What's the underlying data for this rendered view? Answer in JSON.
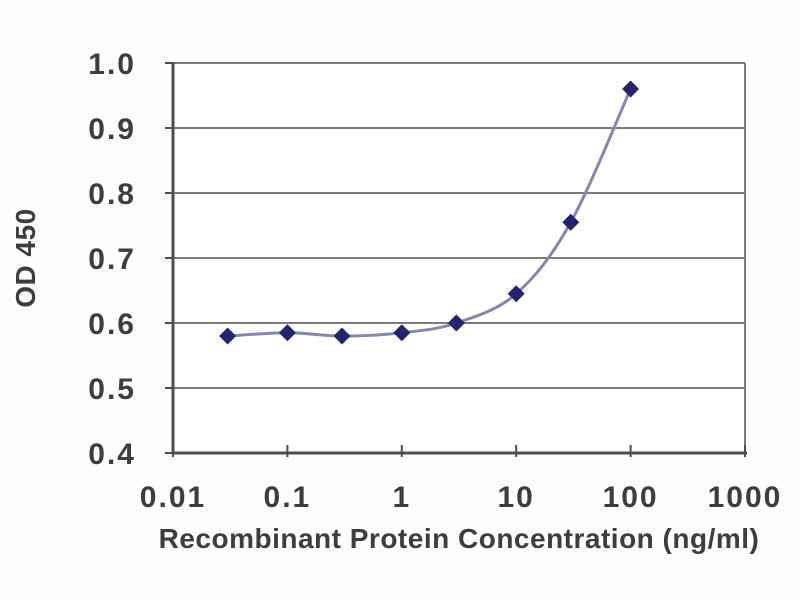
{
  "chart_data": {
    "type": "line",
    "title": "",
    "xlabel": "Recombinant Protein Concentration (ng/ml)",
    "ylabel": "OD 450",
    "x_scale": "log",
    "grid": "horizontal",
    "legend": "none",
    "marker_shape": "diamond",
    "xlim": [
      0.01,
      1000
    ],
    "ylim": [
      0.4,
      1.0
    ],
    "x": [
      0.03,
      0.1,
      0.3,
      1,
      3,
      10,
      30,
      100
    ],
    "series": [
      {
        "name": "OD 450",
        "values": [
          0.58,
          0.585,
          0.58,
          0.585,
          0.6,
          0.645,
          0.755,
          0.96
        ]
      }
    ],
    "x_ticks": [
      "0.01",
      "0.1",
      "1",
      "10",
      "100",
      "1000"
    ],
    "x_tick_values": [
      0.01,
      0.1,
      1,
      10,
      100,
      1000
    ],
    "y_ticks": [
      "1.0",
      "0.9",
      "0.8",
      "0.7",
      "0.6",
      "0.5",
      "0.4"
    ],
    "y_tick_values": [
      1.0,
      0.9,
      0.8,
      0.7,
      0.6,
      0.5,
      0.4
    ],
    "colors": {
      "line": "#8487b0",
      "marker": "#232370",
      "gridline": "#7b7b7b",
      "axis": "#4d4d4d",
      "text": "#3d3d3d",
      "background": "#fdfdfb",
      "plot_bg": "#ffffff"
    }
  }
}
